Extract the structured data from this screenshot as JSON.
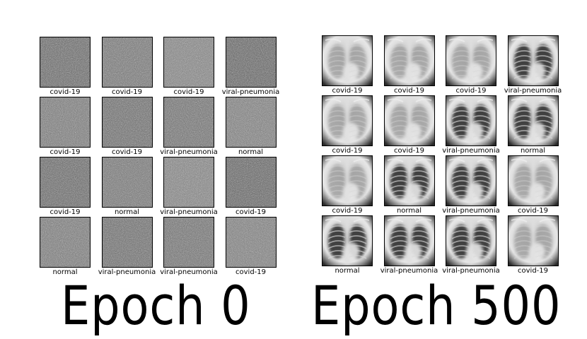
{
  "panels": [
    {
      "caption": "Epoch 0",
      "style": "noise",
      "labels": [
        "covid-19",
        "covid-19",
        "covid-19",
        "viral-pneumonia",
        "covid-19",
        "covid-19",
        "viral-pneumonia",
        "normal",
        "covid-19",
        "normal",
        "viral-pneumonia",
        "covid-19",
        "normal",
        "viral-pneumonia",
        "viral-pneumonia",
        "covid-19"
      ]
    },
    {
      "caption": "Epoch 500",
      "style": "xray",
      "labels": [
        "covid-19",
        "covid-19",
        "covid-19",
        "viral-pneumonia",
        "covid-19",
        "covid-19",
        "viral-pneumonia",
        "normal",
        "covid-19",
        "normal",
        "viral-pneumonia",
        "covid-19",
        "normal",
        "viral-pneumonia",
        "viral-pneumonia",
        "covid-19"
      ]
    }
  ]
}
